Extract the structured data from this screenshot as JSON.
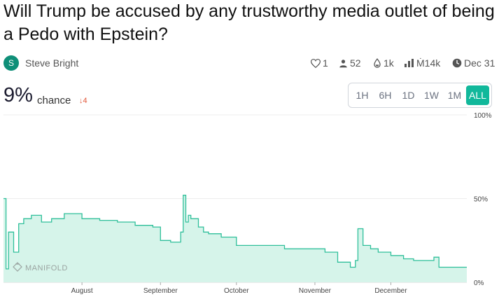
{
  "question": {
    "title": "Will Trump be accused by any trustworthy media outlet of being a Pedo with Epstein?"
  },
  "author": {
    "initial": "S",
    "name": "Steve Bright"
  },
  "stats": {
    "likes": "1",
    "traders": "52",
    "liquidity": "1k",
    "volume": "Ṁ14k",
    "close_date": "Dec 31"
  },
  "probability": {
    "value": "9%",
    "label": "chance",
    "change": "4"
  },
  "time_range": {
    "options": [
      "1H",
      "6H",
      "1D",
      "1W",
      "1M",
      "ALL"
    ],
    "selected": "ALL"
  },
  "watermark": "MANIFOLD",
  "colors": {
    "accent": "#11b89b",
    "area_fill": "#d6f4ea",
    "line": "#2fbf9a",
    "down": "#e2573a"
  },
  "chart_data": {
    "type": "area",
    "ylim": [
      0,
      100
    ],
    "y_ticks": [
      "100%",
      "50%",
      "0%"
    ],
    "x_ticks": [
      "August",
      "September",
      "October",
      "November",
      "December"
    ],
    "series": [
      {
        "x": [
          "Jul 1",
          "Jul 2",
          "Jul 3",
          "Jul 5",
          "Jul 7",
          "Jul 9",
          "Jul 12",
          "Jul 16",
          "Jul 20",
          "Jul 25",
          "Aug 1",
          "Aug 8",
          "Aug 15",
          "Aug 22",
          "Aug 29",
          "Sep 1",
          "Sep 5",
          "Sep 9",
          "Sep 10",
          "Sep 11",
          "Sep 12",
          "Sep 13",
          "Sep 16",
          "Sep 18",
          "Sep 20",
          "Sep 25",
          "Oct 1",
          "Oct 10",
          "Oct 20",
          "Nov 1",
          "Nov 5",
          "Nov 10",
          "Nov 15",
          "Nov 17",
          "Nov 18",
          "Nov 20",
          "Nov 23",
          "Nov 26",
          "Dec 1",
          "Dec 6",
          "Dec 10",
          "Dec 15",
          "Dec 18",
          "Dec 20"
        ],
        "y": [
          50,
          8,
          30,
          18,
          35,
          38,
          40,
          36,
          38,
          41,
          38,
          37,
          36,
          34,
          33,
          25,
          24,
          30,
          52,
          36,
          40,
          38,
          33,
          30,
          29,
          27,
          22,
          22,
          20,
          20,
          18,
          12,
          9,
          13,
          32,
          22,
          20,
          18,
          16,
          14,
          13,
          13,
          15,
          9
        ]
      }
    ]
  }
}
